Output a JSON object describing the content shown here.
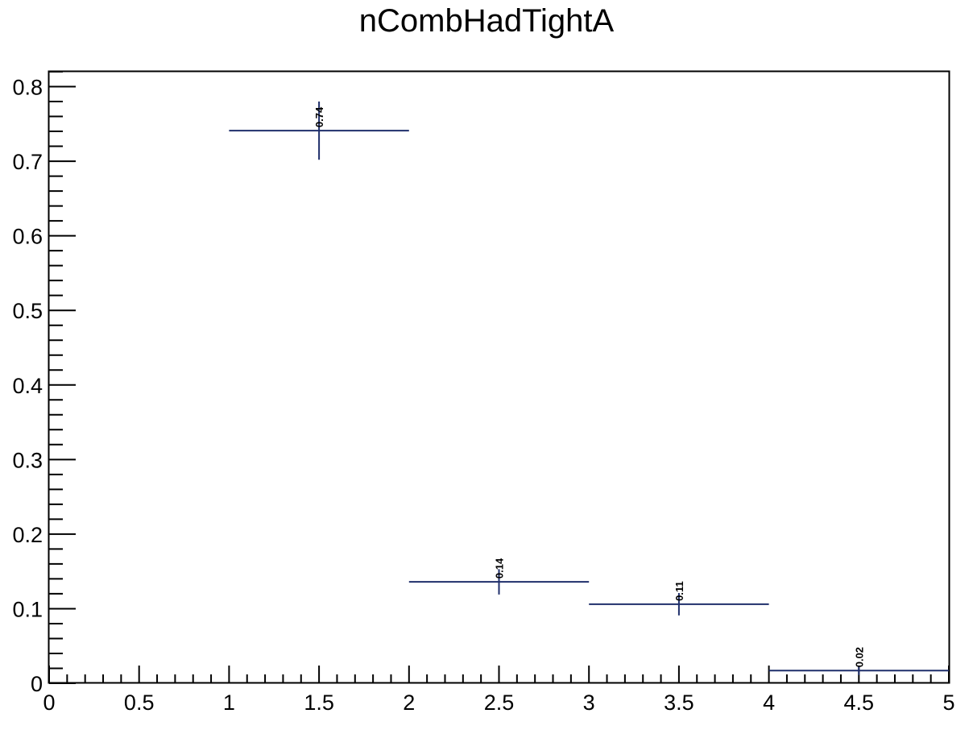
{
  "chart_data": {
    "type": "scatter",
    "title": "nCombHadTightA",
    "xlabel": "",
    "ylabel": "",
    "xlim": [
      0,
      5
    ],
    "ylim": [
      0,
      0.82
    ],
    "x_ticks": [
      0,
      0.5,
      1,
      1.5,
      2,
      2.5,
      3,
      3.5,
      4,
      4.5,
      5
    ],
    "x_tick_labels": [
      "0",
      "0.5",
      "1",
      "1.5",
      "2",
      "2.5",
      "3",
      "3.5",
      "4",
      "4.5",
      "5"
    ],
    "y_ticks": [
      0,
      0.1,
      0.2,
      0.3,
      0.4,
      0.5,
      0.6,
      0.7,
      0.8
    ],
    "y_tick_labels": [
      "0",
      "0.1",
      "0.2",
      "0.3",
      "0.4",
      "0.5",
      "0.6",
      "0.7",
      "0.8"
    ],
    "grid": false,
    "series": [
      {
        "color": "#1f2f6b",
        "points": [
          {
            "x_low": 1,
            "x_high": 2,
            "x": 1.5,
            "y": 0.741,
            "err": 0.039,
            "label": "0.74"
          },
          {
            "x_low": 2,
            "x_high": 3,
            "x": 2.5,
            "y": 0.136,
            "err": 0.017,
            "label": "0.14"
          },
          {
            "x_low": 3,
            "x_high": 4,
            "x": 3.5,
            "y": 0.106,
            "err": 0.015,
            "label": "0.11"
          },
          {
            "x_low": 4,
            "x_high": 5,
            "x": 4.5,
            "y": 0.017,
            "err": 0.006,
            "label": "0.02"
          }
        ]
      }
    ]
  }
}
